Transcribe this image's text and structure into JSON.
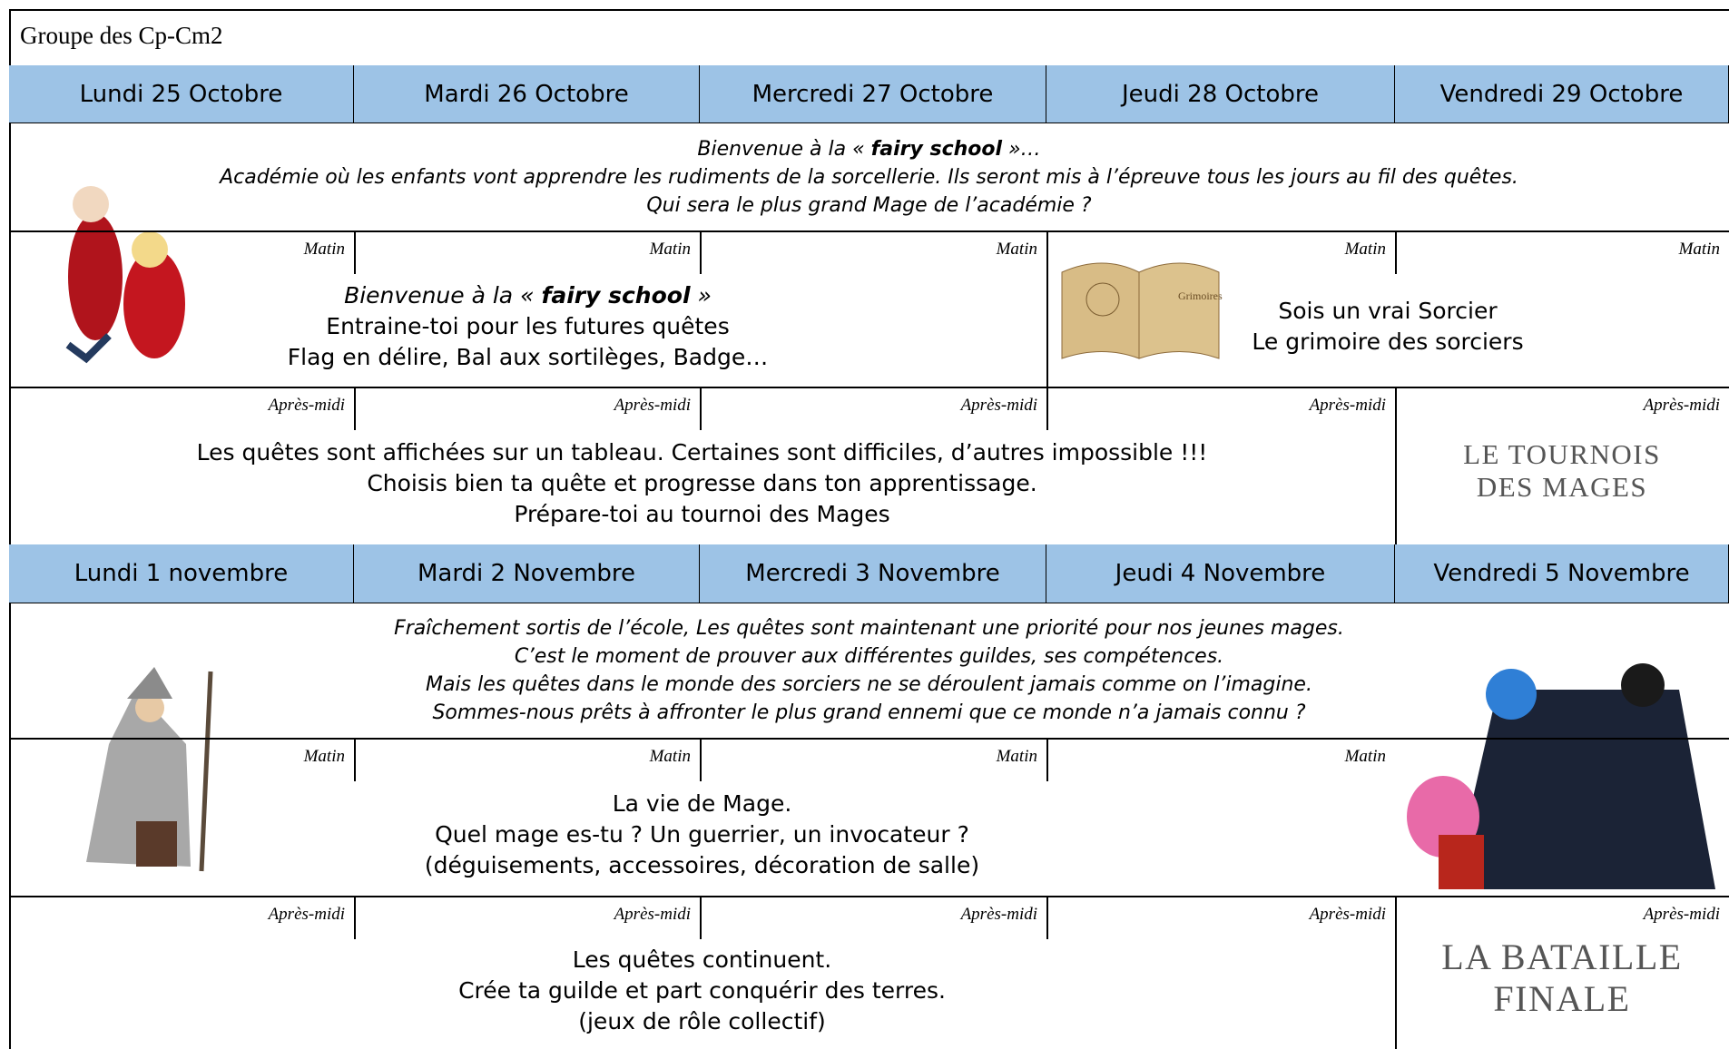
{
  "header": {
    "title": "Groupe des Cp-Cm2"
  },
  "weeks": [
    {
      "days": [
        "Lundi 25 Octobre",
        "Mardi 26 Octobre",
        "Mercredi 27 Octobre",
        "Jeudi 28 Octobre",
        "Vendredi 29 Octobre"
      ],
      "intro": [
        [
          {
            "text": "Bienvenue à la « "
          },
          {
            "text": "fairy school",
            "bold": true
          },
          {
            "text": " »…"
          }
        ],
        [
          {
            "text": "Académie où les enfants vont apprendre les rudiments de la sorcellerie. Ils seront mis à l’épreuve tous les jours au fil des quêtes."
          }
        ],
        [
          {
            "text": "Qui sera le plus grand Mage de l’académie ?"
          }
        ]
      ],
      "morning": {
        "labels": [
          "Matin",
          "Matin",
          "Matin",
          "Matin",
          "Matin"
        ],
        "blocks": [
          {
            "lines": [
              [
                {
                  "text": "Bienvenue à la « ",
                  "italic": true
                },
                {
                  "text": "fairy school",
                  "bold": true,
                  "italic": true
                },
                {
                  "text": " »",
                  "italic": true
                }
              ],
              [
                {
                  "text": "Entraine-toi pour les futures quêtes"
                }
              ],
              [
                {
                  "text": "Flag en délire, Bal aux sortilèges, Badge…"
                }
              ]
            ]
          },
          {
            "lines": [
              [
                {
                  "text": "Sois un vrai Sorcier"
                }
              ],
              [
                {
                  "text": "Le grimoire des sorciers"
                }
              ]
            ]
          }
        ]
      },
      "afternoon": {
        "labels": [
          "Après-midi",
          "Après-midi",
          "Après-midi",
          "Après-midi",
          "Après-midi"
        ],
        "blocks": [
          {
            "lines": [
              [
                {
                  "text": "Les quêtes sont affichées sur un tableau. Certaines sont difficiles, d’autres impossible !!!"
                }
              ],
              [
                {
                  "text": "Choisis bien ta quête et progresse dans ton apprentissage."
                }
              ],
              [
                {
                  "text": "Prépare-toi au tournoi des Mages"
                }
              ]
            ]
          },
          {
            "lines": [
              [
                {
                  "text": "LE TOURNOIS DES MAGES"
                }
              ]
            ]
          }
        ]
      }
    },
    {
      "days": [
        "Lundi 1 novembre",
        "Mardi 2 Novembre",
        "Mercredi 3 Novembre",
        "Jeudi 4 Novembre",
        "Vendredi 5 Novembre"
      ],
      "intro": [
        [
          {
            "text": "Fraîchement sortis de l’école, Les quêtes sont maintenant une priorité pour nos jeunes mages."
          }
        ],
        [
          {
            "text": "C’est le moment de prouver aux différentes guildes,  ses compétences."
          }
        ],
        [
          {
            "text": "Mais les quêtes dans le monde des sorciers ne se déroulent jamais comme on l’imagine."
          }
        ],
        [
          {
            "text": "Sommes-nous prêts à affronter le plus grand ennemi que ce monde n’a jamais connu ?"
          }
        ]
      ],
      "morning": {
        "labels": [
          "Matin",
          "Matin",
          "Matin",
          "Matin"
        ],
        "blocks": [
          {
            "lines": [
              [
                {
                  "text": "La vie de Mage."
                }
              ],
              [
                {
                  "text": "Quel mage es-tu ? Un guerrier, un invocateur ?"
                }
              ],
              [
                {
                  "text": "(déguisements, accessoires, décoration de salle)"
                }
              ]
            ]
          }
        ]
      },
      "afternoon": {
        "labels": [
          "Après-midi",
          "Après-midi",
          "Après-midi",
          "Après-midi",
          "Après-midi"
        ],
        "blocks": [
          {
            "lines": [
              [
                {
                  "text": "Les quêtes continuent."
                }
              ],
              [
                {
                  "text": "Crée ta guilde et part conquérir des terres."
                }
              ],
              [
                {
                  "text": "(jeux de rôle collectif)"
                }
              ]
            ]
          },
          {
            "lines": [
              [
                {
                  "text": "LA BATAILLE FINALE"
                }
              ]
            ]
          }
        ]
      }
    }
  ]
}
